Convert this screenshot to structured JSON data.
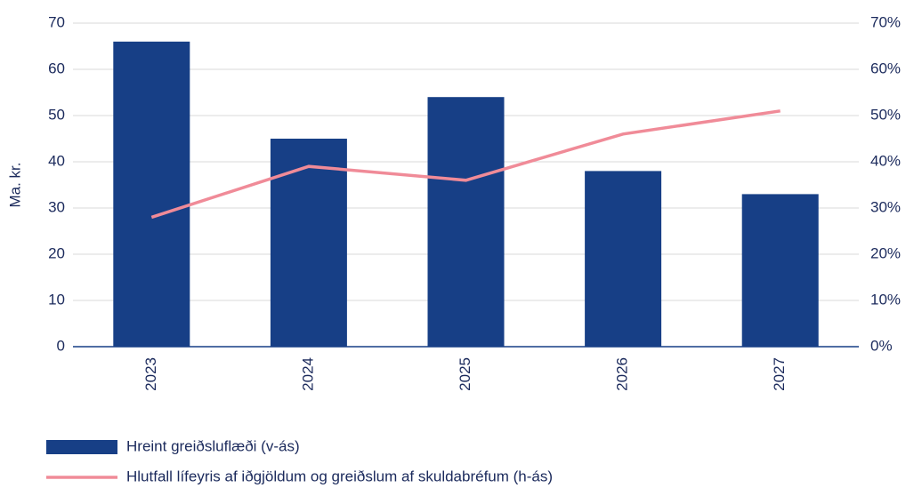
{
  "chart_data": {
    "type": "bar-line",
    "y_label": "Ma. kr.",
    "categories": [
      "2023",
      "2024",
      "2025",
      "2026",
      "2027"
    ],
    "series": [
      {
        "name": "Hreint greiðsluflæði (v-ás)",
        "type": "bar",
        "color": "#173f86",
        "values": [
          66,
          45,
          54,
          38,
          33
        ]
      },
      {
        "name": "Hlutfall lífeyris af iðgjöldum og greiðslum af skuldabréfum (h-ás)",
        "type": "line",
        "axis": "y2",
        "color": "#f08b98",
        "values": [
          28,
          39,
          36,
          46,
          51
        ]
      }
    ],
    "ylim": [
      0,
      70
    ],
    "yticks": [
      0,
      10,
      20,
      30,
      40,
      50,
      60,
      70
    ],
    "y2lim": [
      0,
      70
    ],
    "y2ticks": [
      {
        "value": 0,
        "label": "0%"
      },
      {
        "value": 10,
        "label": "10%"
      },
      {
        "value": 20,
        "label": "20%"
      },
      {
        "value": 30,
        "label": "30%"
      },
      {
        "value": 40,
        "label": "40%"
      },
      {
        "value": 50,
        "label": "50%"
      },
      {
        "value": 60,
        "label": "60%"
      },
      {
        "value": 70,
        "label": "70%"
      }
    ],
    "grid": true
  }
}
